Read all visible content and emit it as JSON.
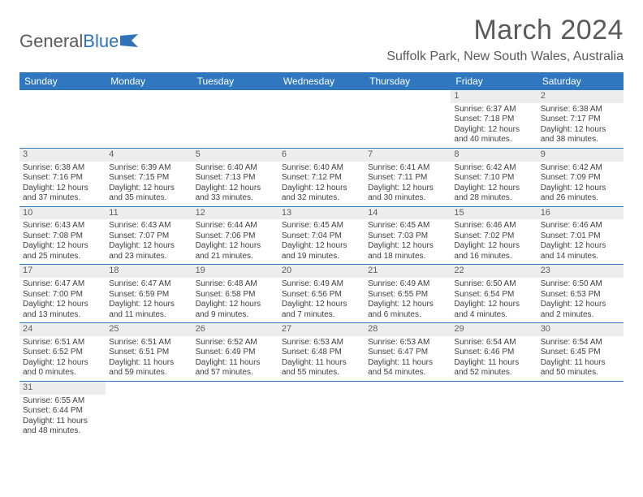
{
  "logo": {
    "text1": "General",
    "text2": "Blue",
    "icon_color": "#2f72b8"
  },
  "title": "March 2024",
  "location": "Suffolk Park, New South Wales, Australia",
  "colors": {
    "header_bg": "#2f78bf",
    "header_fg": "#ffffff",
    "daynum_bg": "#ededed",
    "row_border": "#2f78bf"
  },
  "day_headers": [
    "Sunday",
    "Monday",
    "Tuesday",
    "Wednesday",
    "Thursday",
    "Friday",
    "Saturday"
  ],
  "weeks": [
    [
      null,
      null,
      null,
      null,
      null,
      {
        "n": "1",
        "sunrise": "6:37 AM",
        "sunset": "7:18 PM",
        "dayh": "12",
        "daym": "40"
      },
      {
        "n": "2",
        "sunrise": "6:38 AM",
        "sunset": "7:17 PM",
        "dayh": "12",
        "daym": "38"
      }
    ],
    [
      {
        "n": "3",
        "sunrise": "6:38 AM",
        "sunset": "7:16 PM",
        "dayh": "12",
        "daym": "37"
      },
      {
        "n": "4",
        "sunrise": "6:39 AM",
        "sunset": "7:15 PM",
        "dayh": "12",
        "daym": "35"
      },
      {
        "n": "5",
        "sunrise": "6:40 AM",
        "sunset": "7:13 PM",
        "dayh": "12",
        "daym": "33"
      },
      {
        "n": "6",
        "sunrise": "6:40 AM",
        "sunset": "7:12 PM",
        "dayh": "12",
        "daym": "32"
      },
      {
        "n": "7",
        "sunrise": "6:41 AM",
        "sunset": "7:11 PM",
        "dayh": "12",
        "daym": "30"
      },
      {
        "n": "8",
        "sunrise": "6:42 AM",
        "sunset": "7:10 PM",
        "dayh": "12",
        "daym": "28"
      },
      {
        "n": "9",
        "sunrise": "6:42 AM",
        "sunset": "7:09 PM",
        "dayh": "12",
        "daym": "26"
      }
    ],
    [
      {
        "n": "10",
        "sunrise": "6:43 AM",
        "sunset": "7:08 PM",
        "dayh": "12",
        "daym": "25"
      },
      {
        "n": "11",
        "sunrise": "6:43 AM",
        "sunset": "7:07 PM",
        "dayh": "12",
        "daym": "23"
      },
      {
        "n": "12",
        "sunrise": "6:44 AM",
        "sunset": "7:06 PM",
        "dayh": "12",
        "daym": "21"
      },
      {
        "n": "13",
        "sunrise": "6:45 AM",
        "sunset": "7:04 PM",
        "dayh": "12",
        "daym": "19"
      },
      {
        "n": "14",
        "sunrise": "6:45 AM",
        "sunset": "7:03 PM",
        "dayh": "12",
        "daym": "18"
      },
      {
        "n": "15",
        "sunrise": "6:46 AM",
        "sunset": "7:02 PM",
        "dayh": "12",
        "daym": "16"
      },
      {
        "n": "16",
        "sunrise": "6:46 AM",
        "sunset": "7:01 PM",
        "dayh": "12",
        "daym": "14"
      }
    ],
    [
      {
        "n": "17",
        "sunrise": "6:47 AM",
        "sunset": "7:00 PM",
        "dayh": "12",
        "daym": "13"
      },
      {
        "n": "18",
        "sunrise": "6:47 AM",
        "sunset": "6:59 PM",
        "dayh": "12",
        "daym": "11"
      },
      {
        "n": "19",
        "sunrise": "6:48 AM",
        "sunset": "6:58 PM",
        "dayh": "12",
        "daym": "9"
      },
      {
        "n": "20",
        "sunrise": "6:49 AM",
        "sunset": "6:56 PM",
        "dayh": "12",
        "daym": "7"
      },
      {
        "n": "21",
        "sunrise": "6:49 AM",
        "sunset": "6:55 PM",
        "dayh": "12",
        "daym": "6"
      },
      {
        "n": "22",
        "sunrise": "6:50 AM",
        "sunset": "6:54 PM",
        "dayh": "12",
        "daym": "4"
      },
      {
        "n": "23",
        "sunrise": "6:50 AM",
        "sunset": "6:53 PM",
        "dayh": "12",
        "daym": "2"
      }
    ],
    [
      {
        "n": "24",
        "sunrise": "6:51 AM",
        "sunset": "6:52 PM",
        "dayh": "12",
        "daym": "0"
      },
      {
        "n": "25",
        "sunrise": "6:51 AM",
        "sunset": "6:51 PM",
        "dayh": "11",
        "daym": "59"
      },
      {
        "n": "26",
        "sunrise": "6:52 AM",
        "sunset": "6:49 PM",
        "dayh": "11",
        "daym": "57"
      },
      {
        "n": "27",
        "sunrise": "6:53 AM",
        "sunset": "6:48 PM",
        "dayh": "11",
        "daym": "55"
      },
      {
        "n": "28",
        "sunrise": "6:53 AM",
        "sunset": "6:47 PM",
        "dayh": "11",
        "daym": "54"
      },
      {
        "n": "29",
        "sunrise": "6:54 AM",
        "sunset": "6:46 PM",
        "dayh": "11",
        "daym": "52"
      },
      {
        "n": "30",
        "sunrise": "6:54 AM",
        "sunset": "6:45 PM",
        "dayh": "11",
        "daym": "50"
      }
    ],
    [
      {
        "n": "31",
        "sunrise": "6:55 AM",
        "sunset": "6:44 PM",
        "dayh": "11",
        "daym": "48"
      },
      null,
      null,
      null,
      null,
      null,
      null
    ]
  ]
}
